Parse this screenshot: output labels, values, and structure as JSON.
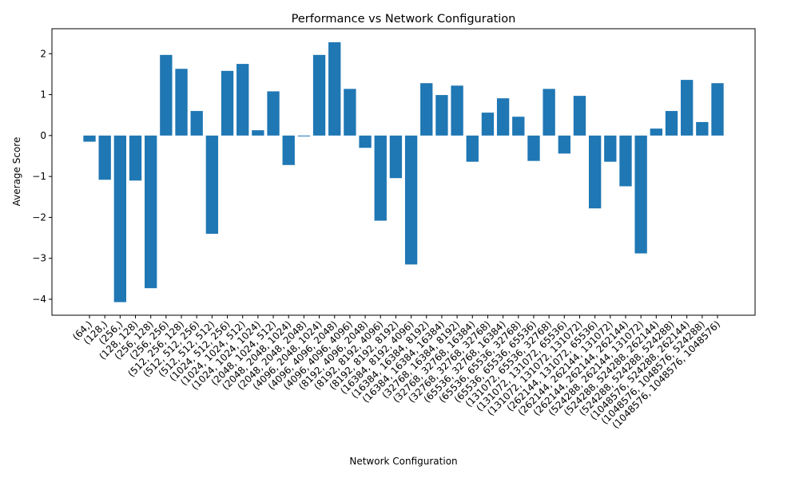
{
  "chart_data": {
    "type": "bar",
    "title": "Performance vs Network Configuration",
    "x_label": "Network Configuration",
    "y_label": "Average Score",
    "color": "#1f77b4",
    "categories": [
      "(64,)",
      "(128,)",
      "(256,)",
      "(128, 128)",
      "(256, 128)",
      "(256, 256)",
      "(512, 256, 128)",
      "(512, 512, 256)",
      "(512, 512, 512)",
      "(1024, 512, 256)",
      "(1024, 1024, 512)",
      "(1024, 1024, 1024)",
      "(2048, 1024, 512)",
      "(2048, 2048, 1024)",
      "(2048, 2048, 2048)",
      "(4096, 2048, 1024)",
      "(4096, 4096, 2048)",
      "(4096, 4096, 4096)",
      "(8192, 4096, 2048)",
      "(8192, 8192, 4096)",
      "(8192, 8192, 8192)",
      "(16384, 8192, 4096)",
      "(16384, 16384, 8192)",
      "(16384, 16384, 16384)",
      "(32768, 16384, 8192)",
      "(32768, 32768, 16384)",
      "(32768, 32768, 32768)",
      "(65536, 32768, 16384)",
      "(65536, 65536, 32768)",
      "(65536, 65536, 65536)",
      "(131072, 65536, 32768)",
      "(131072, 131072, 65536)",
      "(131072, 131072, 131072)",
      "(262144, 131072, 65536)",
      "(262144, 262144, 131072)",
      "(262144, 262144, 262144)",
      "(524288, 262144, 131072)",
      "(524288, 524288, 262144)",
      "(524288, 524288, 524288)",
      "(1048576, 524288, 262144)",
      "(1048576, 1048576, 524288)",
      "(1048576, 1048576, 1048576)"
    ],
    "values": [
      -0.15,
      -1.08,
      -4.07,
      -1.1,
      -3.73,
      1.97,
      1.63,
      0.6,
      -2.4,
      1.58,
      1.75,
      0.13,
      1.08,
      -0.72,
      -0.02,
      1.97,
      2.28,
      1.14,
      -0.3,
      -2.08,
      -1.04,
      -3.15,
      1.28,
      0.99,
      1.22,
      -0.64,
      0.56,
      0.91,
      0.46,
      -0.62,
      1.14,
      -0.44,
      0.97,
      -1.78,
      -0.64,
      -1.24,
      -2.88,
      0.17,
      0.6,
      1.36,
      0.33,
      1.28
    ],
    "ylim": [
      -4.39,
      2.61
    ],
    "yticks": [
      {
        "value": -4,
        "label": "−4"
      },
      {
        "value": -3,
        "label": "−3"
      },
      {
        "value": -2,
        "label": "−2"
      },
      {
        "value": -1,
        "label": "−1"
      },
      0,
      1,
      2
    ]
  }
}
